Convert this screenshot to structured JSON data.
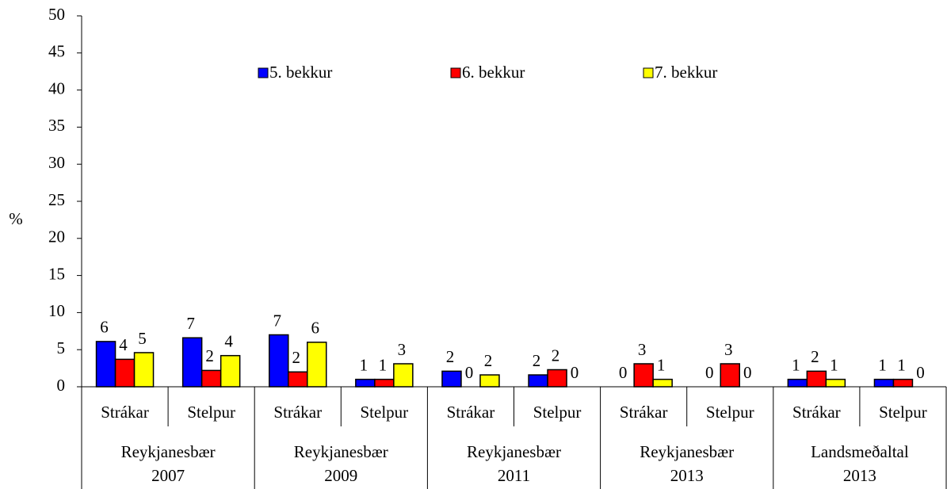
{
  "chart_data": {
    "type": "bar",
    "y_label": "%",
    "categories": [
      "Strákar",
      "Stelpur",
      "Strákar",
      "Stelpur",
      "Strákar",
      "Stelpur",
      "Strákar",
      "Stelpur",
      "Strákar",
      "Stelpur"
    ],
    "group_labels": [
      [
        "Reykjanesbær",
        "2007"
      ],
      [
        "Reykjanesbær",
        "2009"
      ],
      [
        "Reykjanesbær",
        "2011"
      ],
      [
        "Reykjanesbær",
        "2013"
      ],
      [
        "Landsmeðaltal",
        "2013"
      ]
    ],
    "series": [
      {
        "name": "5. bekkur",
        "color": "#0000ff",
        "values": [
          6.1,
          6.6,
          7.0,
          1.0,
          2.1,
          1.6,
          0,
          0,
          1.0,
          1.0
        ],
        "value_labels": [
          "6",
          "7",
          "7",
          "1",
          "2",
          "2",
          "0",
          "0",
          "1",
          "1"
        ]
      },
      {
        "name": "6. bekkur",
        "color": "#ff0000",
        "values": [
          3.7,
          2.2,
          2.0,
          1.0,
          0,
          2.3,
          3.1,
          3.1,
          2.1,
          1.0
        ],
        "value_labels": [
          "4",
          "2",
          "2",
          "1",
          "0",
          "2",
          "3",
          "3",
          "2",
          "1"
        ]
      },
      {
        "name": "7. bekkur",
        "color": "#ffff00",
        "values": [
          4.6,
          4.2,
          6.0,
          3.1,
          1.6,
          0,
          1.0,
          0,
          1.0,
          0
        ],
        "value_labels": [
          "5",
          "4",
          "6",
          "3",
          "2",
          "0",
          "1",
          "0",
          "1",
          "0"
        ]
      }
    ],
    "ylim": [
      0,
      50
    ],
    "yticks": [
      0,
      5,
      10,
      15,
      20,
      25,
      30,
      35,
      40,
      45,
      50
    ]
  }
}
